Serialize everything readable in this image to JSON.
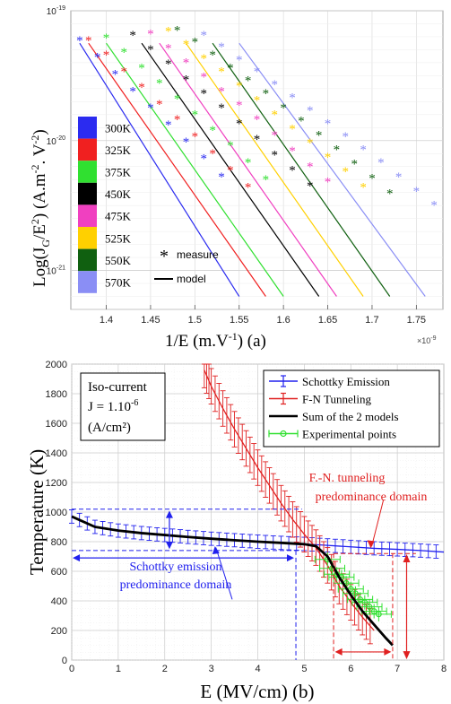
{
  "charts": {
    "a": {
      "y_axis_label": "Log(J",
      "y_axis_label_sub": "G",
      "y_axis_label_rest": "/E",
      "y_axis_label_sup": "2",
      "y_axis_label_tail": ") (A.m",
      "y_axis_label_sup2": "-2",
      "y_axis_label_end": ". V",
      "y_axis_label_sup3": "-2",
      "y_axis_label_close": ")",
      "x_axis_label": "1/E (m.V",
      "x_axis_label_sup": "-1",
      "x_axis_label_end": ") (a)",
      "x_exponent_label": "×10",
      "x_exponent_sup": "-9",
      "y_ticks": [
        {
          "value": -19,
          "base": "10",
          "exp": "-19"
        },
        {
          "value": -20,
          "base": "10",
          "exp": "-20"
        },
        {
          "value": -21,
          "base": "10",
          "exp": "-21"
        }
      ],
      "x_ticks": [
        "1.4",
        "1.45",
        "1.5",
        "1.55",
        "1.6",
        "1.65",
        "1.7",
        "1.75"
      ],
      "legend_temps": [
        {
          "label": "300K",
          "color": "#2b2bf0"
        },
        {
          "label": "325K",
          "color": "#f02020"
        },
        {
          "label": "375K",
          "color": "#30e030"
        },
        {
          "label": "450K",
          "color": "#000000"
        },
        {
          "label": "475K",
          "color": "#f040c0"
        },
        {
          "label": "525K",
          "color": "#ffd000"
        },
        {
          "label": "550K",
          "color": "#106010"
        },
        {
          "label": "570K",
          "color": "#8a8ef5"
        }
      ],
      "legend_measure": "measure",
      "legend_model": "model"
    },
    "b": {
      "y_axis_label": "Temperature (K)",
      "x_axis_label": "E (MV/cm) (b)",
      "y_ticks": [
        "0",
        "200",
        "400",
        "600",
        "800",
        "1000",
        "1200",
        "1400",
        "1600",
        "1800",
        "2000"
      ],
      "x_ticks": [
        "0",
        "1",
        "2",
        "3",
        "4",
        "5",
        "6",
        "7",
        "8"
      ],
      "info_line1": "Iso-current",
      "info_line2": "J = 1.10",
      "info_line2_sup": "-6",
      "info_line3": "(A/cm²)",
      "legend": [
        {
          "label": "Schottky Emission",
          "color": "#2020ee"
        },
        {
          "label": "F-N Tunneling",
          "color": "#e02020"
        },
        {
          "label": "Sum of the 2 models",
          "color": "#000000"
        },
        {
          "label": "Experimental points",
          "color": "#30e030"
        }
      ],
      "annotation_fn_1": "F.-N. tunneling",
      "annotation_fn_2": "predominance domain",
      "annotation_sch_1": "Schottky emission",
      "annotation_sch_2": "predominance domain"
    }
  },
  "chart_data": [
    {
      "type": "scatter",
      "panel": "a",
      "x_scale": "1e-9",
      "xlim": [
        1.36,
        1.78
      ],
      "ylim_log10": [
        -21.3,
        -19
      ],
      "series": [
        {
          "name": "300K",
          "color": "#2b2bf0",
          "measure": {
            "x": [
              1.37,
              1.39,
              1.41,
              1.43,
              1.45,
              1.47,
              1.49,
              1.51,
              1.53
            ],
            "log10y": [
              -19.22,
              -19.35,
              -19.48,
              -19.61,
              -19.74,
              -19.87,
              -20.0,
              -20.13,
              -20.27
            ]
          },
          "model": {
            "x": [
              1.37,
              1.55
            ],
            "log10y": [
              -19.25,
              -21.2
            ]
          }
        },
        {
          "name": "325K",
          "color": "#f02020",
          "measure": {
            "x": [
              1.38,
              1.4,
              1.42,
              1.44,
              1.46,
              1.48,
              1.5,
              1.52,
              1.54,
              1.56
            ],
            "log10y": [
              -19.22,
              -19.33,
              -19.46,
              -19.58,
              -19.71,
              -19.83,
              -19.96,
              -20.09,
              -20.22,
              -20.35
            ]
          },
          "model": {
            "x": [
              1.38,
              1.58
            ],
            "log10y": [
              -19.25,
              -21.2
            ]
          }
        },
        {
          "name": "375K",
          "color": "#30e030",
          "measure": {
            "x": [
              1.4,
              1.42,
              1.44,
              1.46,
              1.48,
              1.5,
              1.52,
              1.54,
              1.56,
              1.58
            ],
            "log10y": [
              -19.2,
              -19.31,
              -19.43,
              -19.55,
              -19.67,
              -19.79,
              -19.91,
              -20.03,
              -20.16,
              -20.29
            ]
          },
          "model": {
            "x": [
              1.4,
              1.6
            ],
            "log10y": [
              -19.25,
              -21.2
            ]
          }
        },
        {
          "name": "450K",
          "color": "#000000",
          "measure": {
            "x": [
              1.43,
              1.45,
              1.47,
              1.49,
              1.51,
              1.53,
              1.55,
              1.57,
              1.59,
              1.61,
              1.63
            ],
            "log10y": [
              -19.18,
              -19.29,
              -19.4,
              -19.52,
              -19.63,
              -19.74,
              -19.86,
              -19.98,
              -20.1,
              -20.22,
              -20.34
            ]
          },
          "model": {
            "x": [
              1.44,
              1.64
            ],
            "log10y": [
              -19.25,
              -21.2
            ]
          }
        },
        {
          "name": "475K",
          "color": "#f040c0",
          "measure": {
            "x": [
              1.45,
              1.47,
              1.49,
              1.51,
              1.53,
              1.55,
              1.57,
              1.59,
              1.61,
              1.63,
              1.65
            ],
            "log10y": [
              -19.17,
              -19.28,
              -19.39,
              -19.5,
              -19.61,
              -19.72,
              -19.83,
              -19.95,
              -20.07,
              -20.19,
              -20.31
            ]
          },
          "model": {
            "x": [
              1.46,
              1.66
            ],
            "log10y": [
              -19.25,
              -21.2
            ]
          }
        },
        {
          "name": "525K",
          "color": "#ffd000",
          "measure": {
            "x": [
              1.47,
              1.49,
              1.51,
              1.53,
              1.55,
              1.57,
              1.59,
              1.61,
              1.63,
              1.65,
              1.67,
              1.69
            ],
            "log10y": [
              -19.15,
              -19.25,
              -19.36,
              -19.46,
              -19.57,
              -19.68,
              -19.79,
              -19.9,
              -20.01,
              -20.12,
              -20.23,
              -20.35
            ]
          },
          "model": {
            "x": [
              1.49,
              1.69
            ],
            "log10y": [
              -19.25,
              -21.2
            ]
          }
        },
        {
          "name": "550K",
          "color": "#106010",
          "measure": {
            "x": [
              1.48,
              1.5,
              1.52,
              1.54,
              1.56,
              1.58,
              1.6,
              1.62,
              1.64,
              1.66,
              1.68,
              1.7,
              1.72
            ],
            "log10y": [
              -19.14,
              -19.23,
              -19.33,
              -19.43,
              -19.53,
              -19.63,
              -19.74,
              -19.84,
              -19.95,
              -20.06,
              -20.17,
              -20.28,
              -20.4
            ]
          },
          "model": {
            "x": [
              1.52,
              1.72
            ],
            "log10y": [
              -19.25,
              -21.2
            ]
          }
        },
        {
          "name": "570K",
          "color": "#8a8ef5",
          "measure": {
            "x": [
              1.51,
              1.53,
              1.55,
              1.57,
              1.59,
              1.61,
              1.63,
              1.65,
              1.67,
              1.69,
              1.71,
              1.73,
              1.75,
              1.77
            ],
            "log10y": [
              -19.18,
              -19.27,
              -19.37,
              -19.46,
              -19.56,
              -19.66,
              -19.76,
              -19.86,
              -19.96,
              -20.06,
              -20.16,
              -20.27,
              -20.38,
              -20.49
            ]
          },
          "model": {
            "x": [
              1.55,
              1.76
            ],
            "log10y": [
              -19.25,
              -21.2
            ]
          }
        }
      ]
    },
    {
      "type": "line",
      "panel": "b",
      "xlim": [
        0,
        8
      ],
      "ylim": [
        0,
        2000
      ],
      "series": [
        {
          "name": "Schottky Emission",
          "color": "#2020ee",
          "x": [
            0,
            0.5,
            1,
            1.5,
            2,
            2.5,
            3,
            3.5,
            4,
            4.5,
            5,
            5.5,
            6,
            6.5,
            7,
            7.5,
            8
          ],
          "y": [
            970,
            900,
            875,
            858,
            845,
            832,
            820,
            810,
            800,
            792,
            785,
            775,
            765,
            755,
            748,
            740,
            730
          ],
          "err": 45
        },
        {
          "name": "F-N Tunneling",
          "color": "#e02020",
          "x": [
            2.85,
            3.0,
            3.25,
            3.5,
            3.75,
            4.0,
            4.25,
            4.5,
            4.75,
            5.0,
            5.25,
            5.5,
            5.75,
            6.0,
            6.25,
            6.5
          ],
          "y": [
            1960,
            1850,
            1700,
            1560,
            1430,
            1300,
            1180,
            1060,
            950,
            850,
            760,
            640,
            500,
            390,
            290,
            200
          ],
          "err": 120
        },
        {
          "name": "Sum of the 2 models",
          "color": "#000000",
          "x": [
            0,
            0.5,
            1,
            1.5,
            2,
            2.5,
            3,
            3.5,
            4,
            4.5,
            5,
            5.25,
            5.5,
            5.75,
            6.0,
            6.25,
            6.5,
            6.75,
            6.9
          ],
          "y": [
            970,
            900,
            875,
            858,
            845,
            832,
            820,
            810,
            800,
            792,
            783,
            770,
            700,
            560,
            440,
            330,
            240,
            150,
            100
          ]
        },
        {
          "name": "Experimental points",
          "color": "#30e030",
          "x": [
            5.5,
            5.6,
            5.7,
            5.8,
            5.9,
            6.0,
            6.1,
            6.2,
            6.3,
            6.4,
            6.5,
            6.6
          ],
          "y": [
            680,
            620,
            580,
            560,
            520,
            480,
            450,
            410,
            390,
            360,
            330,
            310
          ]
        }
      ]
    }
  ]
}
